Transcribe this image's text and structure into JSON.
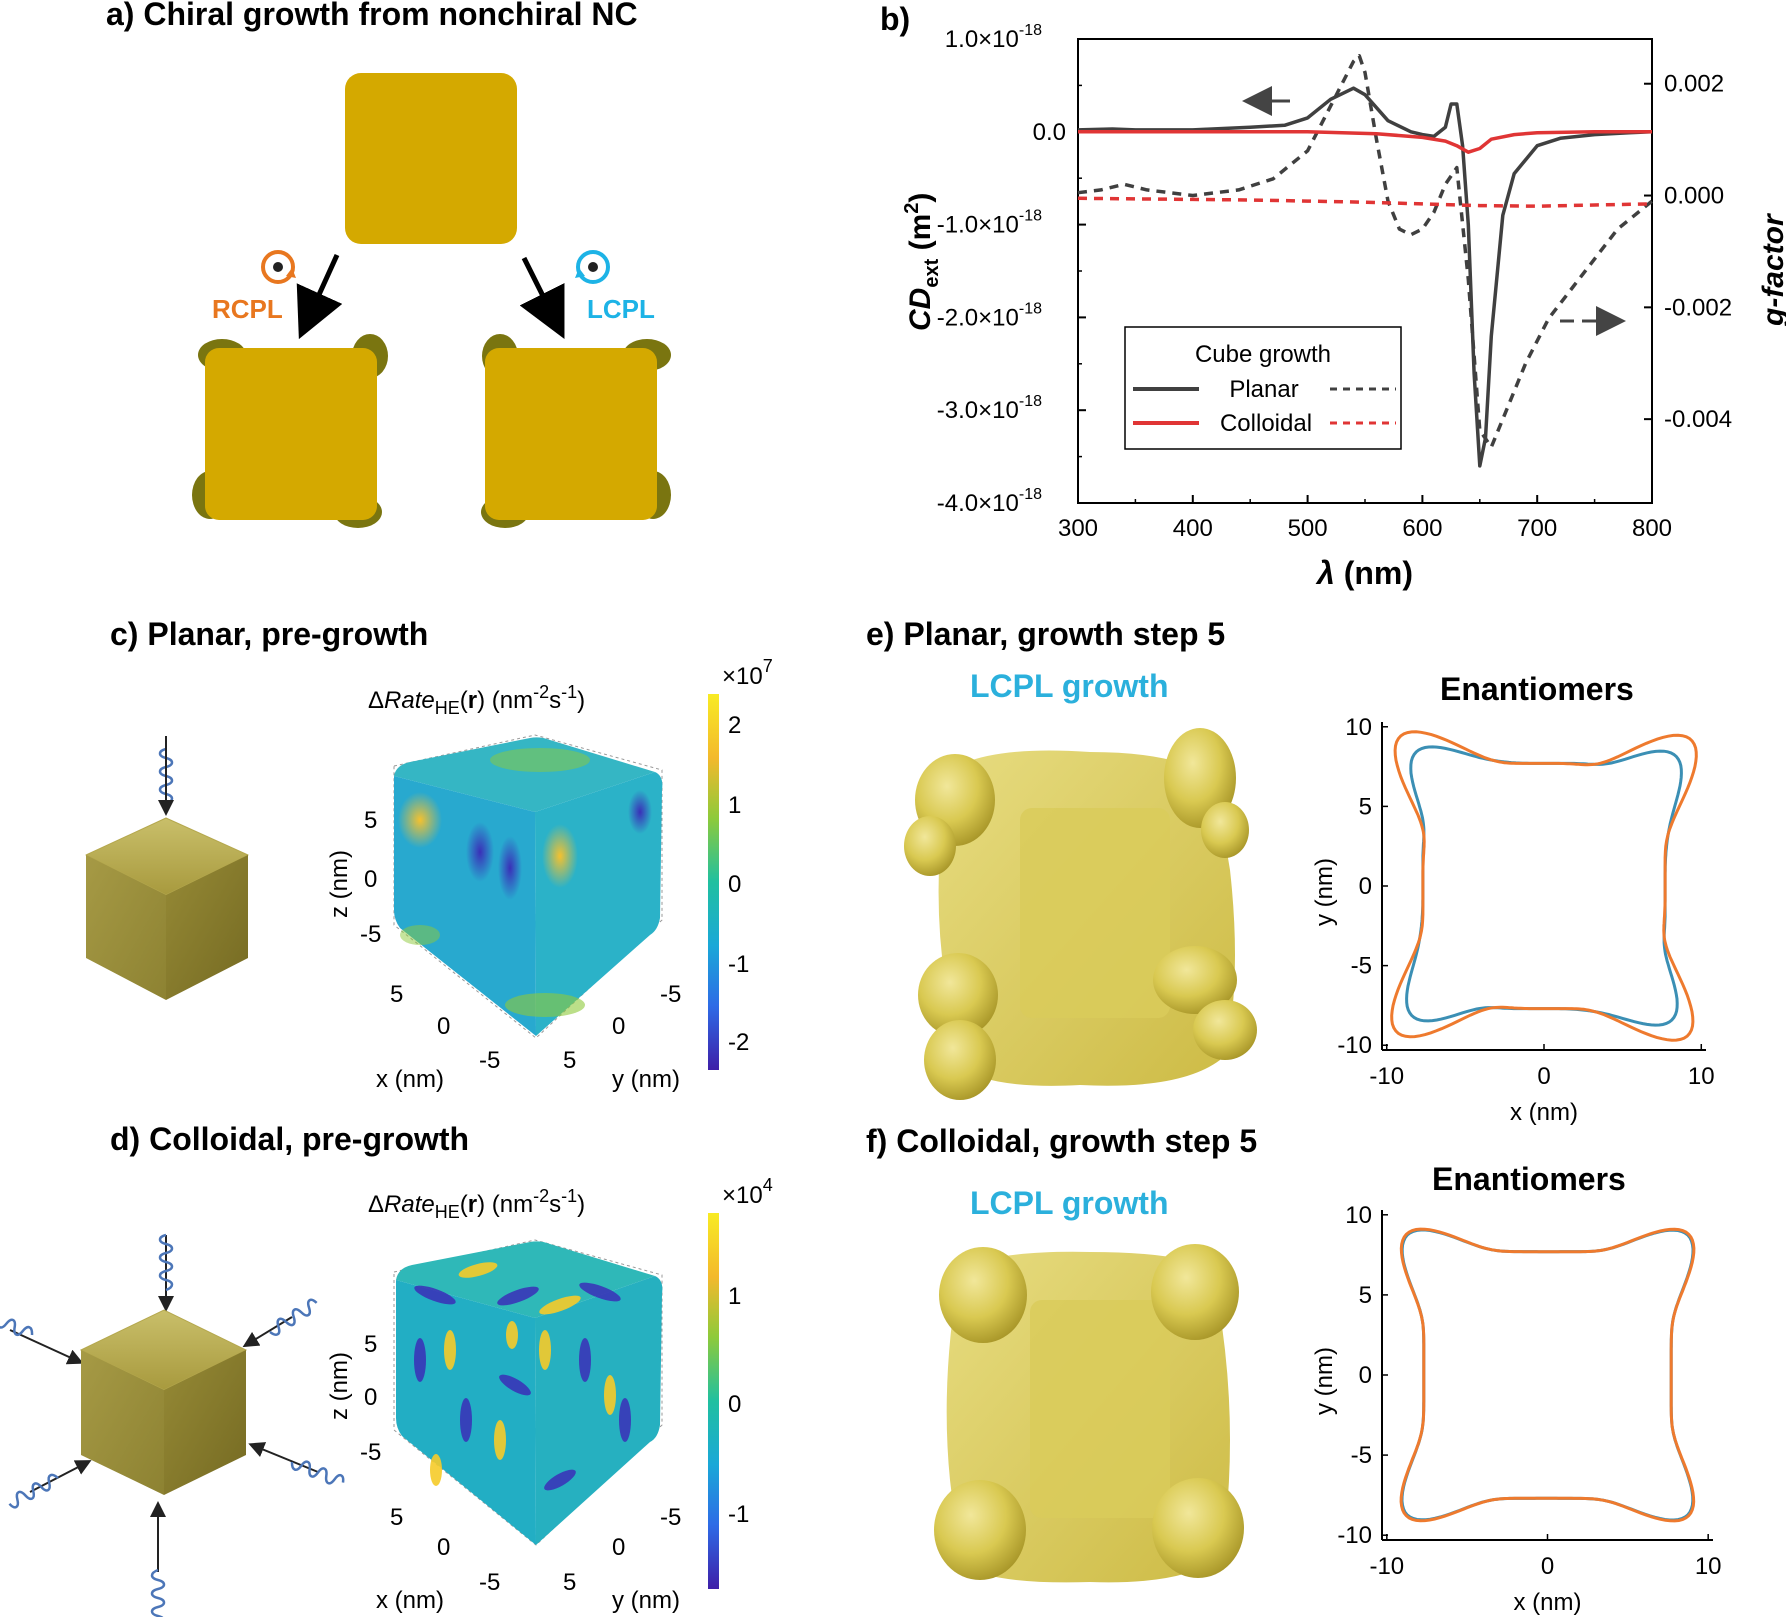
{
  "panel_a": {
    "title": "a) Chiral growth from nonchiral NC",
    "rcpl_label": "RCPL",
    "lcpl_label": "LCPL",
    "colors": {
      "gold": "#D4A900",
      "tip": "#7A7510",
      "rcpl": "#E8771F",
      "lcpl": "#1DB3E6"
    }
  },
  "panel_b": {
    "title": "b)"
  },
  "panel_c": {
    "title": "c) Planar,  pre-growth",
    "map_title_delta": "Δ",
    "map_title_rate": "Rate",
    "map_title_sub": "HE",
    "map_title_r": "r",
    "map_title_units": "(nm",
    "map_title_units_exp": "-2",
    "map_title_units_s": "s",
    "map_title_units_exp2": "-1",
    "map_title_units_close": ")",
    "scale_multiplier": "×10",
    "scale_exp": "7",
    "colorbar_ticks": [
      "2",
      "1",
      "0",
      "-1",
      "-2"
    ],
    "z_label": "z (nm)",
    "x_label": "x (nm)",
    "y_label": "y (nm)",
    "z_ticks": [
      "5",
      "0",
      "-5"
    ],
    "x_ticks": [
      "5",
      "0",
      "-5"
    ],
    "y_ticks": [
      "-5",
      "0",
      "5"
    ]
  },
  "panel_d": {
    "title": "d) Colloidal, pre-growth",
    "scale_multiplier": "×10",
    "scale_exp": "4",
    "colorbar_ticks": [
      "1",
      "0",
      "-1"
    ],
    "z_label": "z (nm)",
    "x_label": "x (nm)",
    "y_label": "y (nm)",
    "z_ticks": [
      "5",
      "0",
      "-5"
    ],
    "x_ticks": [
      "5",
      "0",
      "-5"
    ],
    "y_ticks": [
      "-5",
      "0",
      "5"
    ]
  },
  "panel_e": {
    "title": "e) Planar, growth step 5",
    "growth_label": "LCPL growth",
    "enantiomers_title": "Enantiomers",
    "xlabel": "x (nm)",
    "ylabel": "y (nm)",
    "x_ticks": [
      "-10",
      "0",
      "10"
    ],
    "y_ticks": [
      "10",
      "5",
      "0",
      "-5",
      "-10"
    ]
  },
  "panel_f": {
    "title": "f) Colloidal, growth step 5",
    "growth_label": "LCPL growth",
    "enantiomers_title": "Enantiomers",
    "xlabel": "x (nm)",
    "ylabel": "y (nm)",
    "x_ticks": [
      "-10",
      "0",
      "10"
    ],
    "y_ticks": [
      "10",
      "5",
      "0",
      "-5",
      "-10"
    ]
  },
  "chart_data": {
    "type": "line",
    "xlabel": "λ (nm)",
    "ylabel_left_main": "CD",
    "ylabel_left_sub": "ext",
    "ylabel_left_units": "(m",
    "ylabel_left_units_exp": "2",
    "ylabel_left_units_close": ")",
    "ylabel_right": "g-factor",
    "xlim": [
      300,
      800
    ],
    "ylim_left": [
      -4e-18,
      1e-18
    ],
    "ylim_right": [
      -0.0055,
      0.0028
    ],
    "x_ticks": [
      "300",
      "400",
      "500",
      "600",
      "700",
      "800"
    ],
    "y_left_ticks": [
      {
        "mant": "1.0×10",
        "exp": "-18",
        "value": 1e-18
      },
      {
        "mant": "0.0",
        "exp": "",
        "value": 0.0
      },
      {
        "mant": "-1.0×10",
        "exp": "-18",
        "value": -1e-18
      },
      {
        "mant": "-2.0×10",
        "exp": "-18",
        "value": -2e-18
      },
      {
        "mant": "-3.0×10",
        "exp": "-18",
        "value": -3e-18
      },
      {
        "mant": "-4.0×10",
        "exp": "-18",
        "value": -4e-18
      }
    ],
    "y_right_ticks": [
      {
        "label": "0.002",
        "value": 0.002
      },
      {
        "label": "0.000",
        "value": 0.0
      },
      {
        "label": "-0.002",
        "value": -0.002
      },
      {
        "label": "-0.004",
        "value": -0.004
      }
    ],
    "legend": {
      "title": "Cube growth",
      "entries": [
        "Planar",
        "Colloidal"
      ],
      "placement": "bottom-left"
    },
    "colors": {
      "planar": "#404040",
      "colloidal": "#E03535"
    },
    "series": [
      {
        "name": "Planar",
        "axis": "left",
        "style": "solid",
        "x": [
          300,
          330,
          350,
          400,
          450,
          480,
          500,
          520,
          540,
          550,
          570,
          590,
          600,
          610,
          620,
          625,
          630,
          635,
          640,
          645,
          650,
          655,
          660,
          670,
          680,
          700,
          720,
          750,
          780,
          800
        ],
        "y": [
          2e-20,
          3e-20,
          2e-20,
          2e-20,
          5e-20,
          7e-20,
          1.5e-19,
          3.5e-19,
          4.7e-19,
          4e-19,
          1.2e-19,
          0.0,
          -3e-20,
          -5e-20,
          5e-20,
          3e-19,
          3e-19,
          -1.5e-19,
          -1e-18,
          -2.6e-18,
          -3.6e-18,
          -3.3e-18,
          -2.2e-18,
          -9e-19,
          -4.5e-19,
          -1.5e-19,
          -7e-20,
          -3e-20,
          -1e-20,
          0.0
        ]
      },
      {
        "name": "Planar",
        "axis": "right",
        "style": "dashed",
        "x": [
          300,
          320,
          340,
          360,
          400,
          440,
          470,
          500,
          520,
          540,
          545,
          550,
          560,
          570,
          580,
          590,
          600,
          610,
          620,
          630,
          640,
          650,
          660,
          670,
          690,
          710,
          740,
          770,
          800
        ],
        "y": [
          5e-05,
          0.0001,
          0.0002,
          0.0001,
          0.0,
          0.0001,
          0.0003,
          0.0008,
          0.0016,
          0.0024,
          0.0025,
          0.0022,
          0.001,
          -0.0001,
          -0.0006,
          -0.0007,
          -0.0006,
          -0.0003,
          0.0002,
          0.0005,
          -0.0015,
          -0.0042,
          -0.0045,
          -0.004,
          -0.003,
          -0.0022,
          -0.0014,
          -0.0006,
          -0.0001
        ]
      },
      {
        "name": "Colloidal",
        "axis": "left",
        "style": "solid",
        "x": [
          300,
          400,
          500,
          560,
          600,
          620,
          630,
          640,
          650,
          660,
          680,
          700,
          750,
          800
        ],
        "y": [
          0.0,
          0.0,
          0.0,
          -2e-20,
          -6e-20,
          -1e-19,
          -1.5e-19,
          -2.2e-19,
          -1.8e-19,
          -8e-20,
          -3e-20,
          -1e-20,
          0.0,
          0.0
        ]
      },
      {
        "name": "Colloidal",
        "axis": "right",
        "style": "dashed",
        "x": [
          300,
          350,
          400,
          450,
          500,
          550,
          600,
          650,
          700,
          750,
          800
        ],
        "y": [
          -5e-05,
          -6e-05,
          -7e-05,
          -8e-05,
          -0.0001,
          -0.00012,
          -0.00015,
          -0.00018,
          -0.00019,
          -0.00017,
          -0.00015
        ]
      }
    ],
    "colormap_stops": [
      "#3E1FA8",
      "#2E6BE6",
      "#1AA8D8",
      "#20C0A0",
      "#8ECA3A",
      "#F3B92C",
      "#F8EB24"
    ],
    "enantiomer_colors": [
      "#3B8FB4",
      "#EE7A2E"
    ]
  }
}
